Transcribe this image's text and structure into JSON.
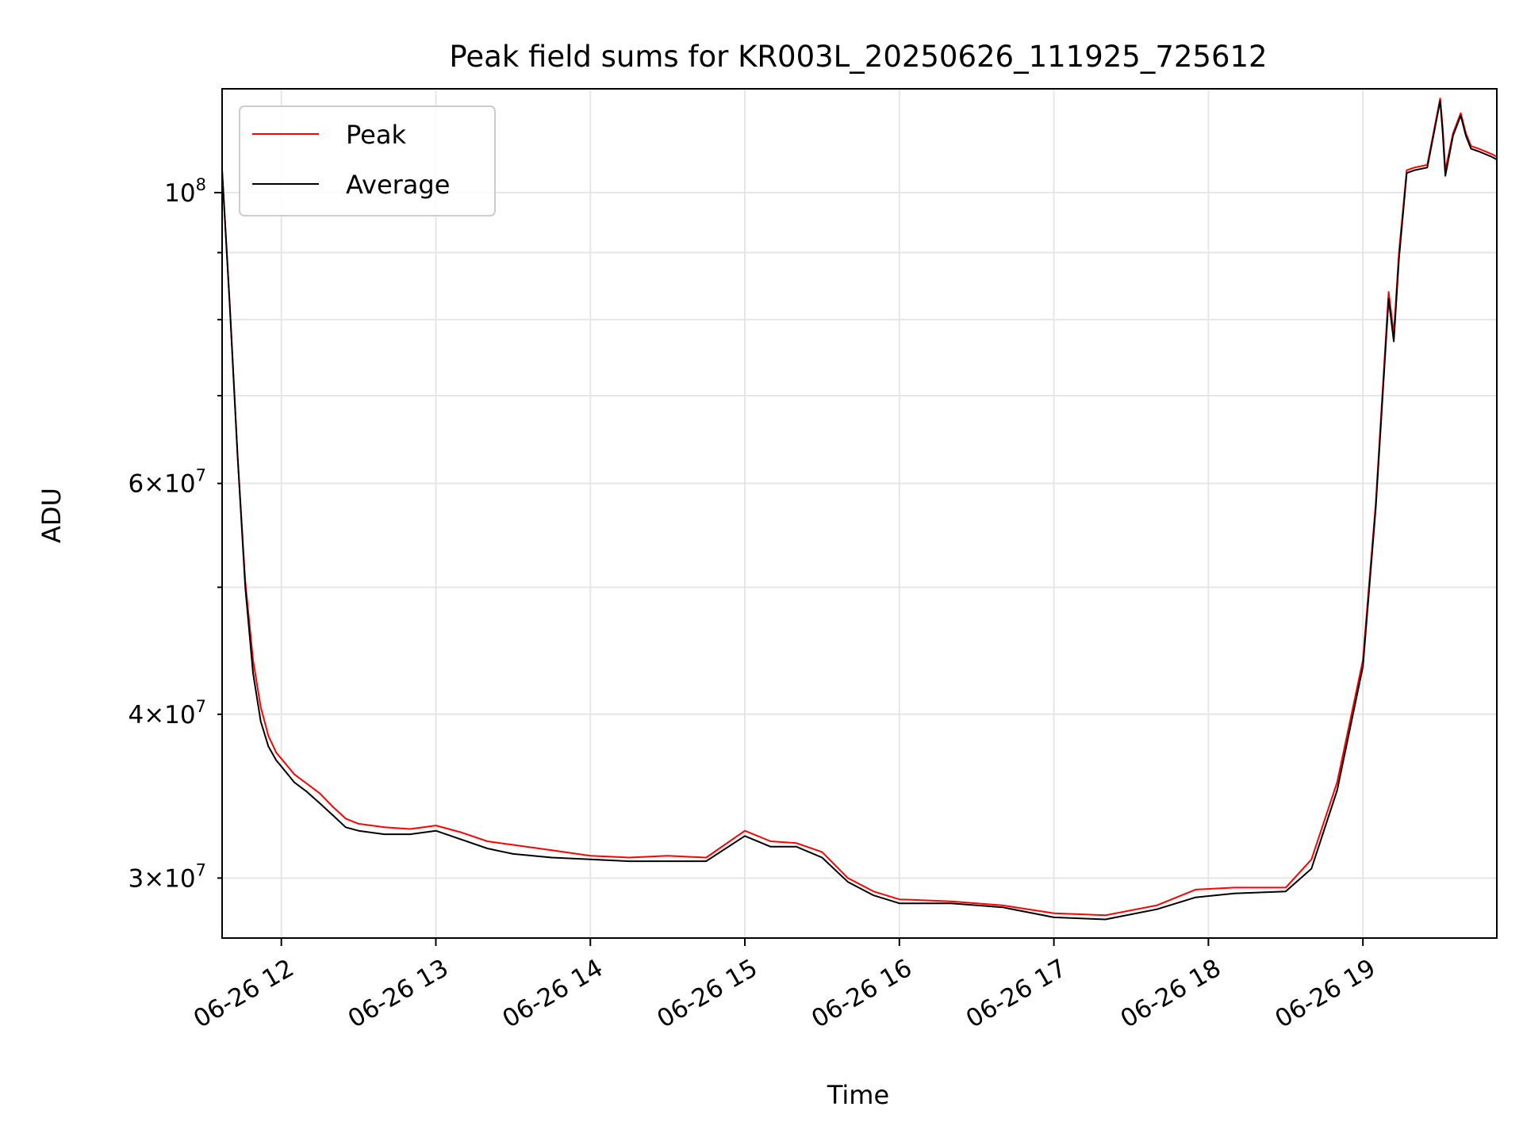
{
  "chart_data": {
    "type": "line",
    "title": "Peak field sums for KR003L_20250626_111925_725612",
    "xlabel": "Time",
    "ylabel": "ADU",
    "y_scale": "log",
    "ylim": [
      27000000,
      120000000
    ],
    "grid": true,
    "legend_position": "top-left",
    "x_tick_labels": [
      "06-26 12",
      "06-26 13",
      "06-26 14",
      "06-26 15",
      "06-26 16",
      "06-26 17",
      "06-26 18",
      "06-26 19"
    ],
    "x_tick_values": [
      "2025-06-26T12:00",
      "2025-06-26T13:00",
      "2025-06-26T14:00",
      "2025-06-26T15:00",
      "2025-06-26T16:00",
      "2025-06-26T17:00",
      "2025-06-26T18:00",
      "2025-06-26T19:00"
    ],
    "xlim": [
      "2025-06-26T11:37",
      "2025-06-26T19:52"
    ],
    "y_major_ticks": [
      {
        "value": 100000000,
        "base": "10",
        "exp": "8"
      }
    ],
    "y_minor_ticks": [
      {
        "value": 30000000,
        "mant": "3",
        "base": "10",
        "exp": "7"
      },
      {
        "value": 40000000,
        "mant": "4",
        "base": "10",
        "exp": "7"
      },
      {
        "value": 60000000,
        "mant": "6",
        "base": "10",
        "exp": "7"
      }
    ],
    "y_unlabeled_minor_ticks": [
      50000000,
      70000000,
      80000000,
      90000000
    ],
    "series": [
      {
        "name": "Peak",
        "color": "#ff0000",
        "x": [
          "2025-06-26T11:37",
          "2025-06-26T11:40",
          "2025-06-26T11:43",
          "2025-06-26T11:46",
          "2025-06-26T11:49",
          "2025-06-26T11:52",
          "2025-06-26T11:55",
          "2025-06-26T11:58",
          "2025-06-26T12:01",
          "2025-06-26T12:05",
          "2025-06-26T12:10",
          "2025-06-26T12:15",
          "2025-06-26T12:20",
          "2025-06-26T12:25",
          "2025-06-26T12:30",
          "2025-06-26T12:40",
          "2025-06-26T12:50",
          "2025-06-26T13:00",
          "2025-06-26T13:10",
          "2025-06-26T13:20",
          "2025-06-26T13:30",
          "2025-06-26T13:45",
          "2025-06-26T14:00",
          "2025-06-26T14:15",
          "2025-06-26T14:30",
          "2025-06-26T14:45",
          "2025-06-26T15:00",
          "2025-06-26T15:10",
          "2025-06-26T15:20",
          "2025-06-26T15:30",
          "2025-06-26T15:40",
          "2025-06-26T15:50",
          "2025-06-26T16:00",
          "2025-06-26T16:20",
          "2025-06-26T16:40",
          "2025-06-26T17:00",
          "2025-06-26T17:20",
          "2025-06-26T17:40",
          "2025-06-26T17:55",
          "2025-06-26T18:10",
          "2025-06-26T18:30",
          "2025-06-26T18:40",
          "2025-06-26T18:50",
          "2025-06-26T19:00",
          "2025-06-26T19:05",
          "2025-06-26T19:10",
          "2025-06-26T19:12",
          "2025-06-26T19:14",
          "2025-06-26T19:17",
          "2025-06-26T19:20",
          "2025-06-26T19:25",
          "2025-06-26T19:30",
          "2025-06-26T19:31",
          "2025-06-26T19:32",
          "2025-06-26T19:35",
          "2025-06-26T19:38",
          "2025-06-26T19:40",
          "2025-06-26T19:42",
          "2025-06-26T19:45",
          "2025-06-26T19:50",
          "2025-06-26T19:52"
        ],
        "y": [
          104000000,
          82000000,
          63000000,
          50500000,
          44000000,
          40500000,
          38500000,
          37400000,
          36800000,
          36000000,
          35400000,
          34800000,
          34000000,
          33300000,
          33000000,
          32800000,
          32700000,
          32900000,
          32500000,
          32000000,
          31800000,
          31500000,
          31200000,
          31100000,
          31200000,
          31100000,
          32600000,
          32000000,
          31900000,
          31400000,
          30000000,
          29300000,
          28900000,
          28800000,
          28600000,
          28200000,
          28100000,
          28600000,
          29400000,
          29500000,
          29500000,
          31000000,
          35500000,
          44000000,
          58000000,
          84000000,
          78000000,
          90000000,
          104000000,
          104500000,
          105000000,
          118000000,
          112000000,
          104000000,
          111000000,
          115000000,
          111000000,
          108500000,
          108000000,
          107000000,
          106500000
        ]
      },
      {
        "name": "Average",
        "color": "#000000",
        "x": [
          "2025-06-26T11:37",
          "2025-06-26T11:40",
          "2025-06-26T11:43",
          "2025-06-26T11:46",
          "2025-06-26T11:49",
          "2025-06-26T11:52",
          "2025-06-26T11:55",
          "2025-06-26T11:58",
          "2025-06-26T12:01",
          "2025-06-26T12:05",
          "2025-06-26T12:10",
          "2025-06-26T12:15",
          "2025-06-26T12:20",
          "2025-06-26T12:25",
          "2025-06-26T12:30",
          "2025-06-26T12:40",
          "2025-06-26T12:50",
          "2025-06-26T13:00",
          "2025-06-26T13:10",
          "2025-06-26T13:20",
          "2025-06-26T13:30",
          "2025-06-26T13:45",
          "2025-06-26T14:00",
          "2025-06-26T14:15",
          "2025-06-26T14:30",
          "2025-06-26T14:45",
          "2025-06-26T15:00",
          "2025-06-26T15:10",
          "2025-06-26T15:20",
          "2025-06-26T15:30",
          "2025-06-26T15:40",
          "2025-06-26T15:50",
          "2025-06-26T16:00",
          "2025-06-26T16:20",
          "2025-06-26T16:40",
          "2025-06-26T17:00",
          "2025-06-26T17:20",
          "2025-06-26T17:40",
          "2025-06-26T17:55",
          "2025-06-26T18:10",
          "2025-06-26T18:30",
          "2025-06-26T18:40",
          "2025-06-26T18:50",
          "2025-06-26T19:00",
          "2025-06-26T19:05",
          "2025-06-26T19:10",
          "2025-06-26T19:12",
          "2025-06-26T19:14",
          "2025-06-26T19:17",
          "2025-06-26T19:20",
          "2025-06-26T19:25",
          "2025-06-26T19:30",
          "2025-06-26T19:31",
          "2025-06-26T19:32",
          "2025-06-26T19:35",
          "2025-06-26T19:38",
          "2025-06-26T19:40",
          "2025-06-26T19:42",
          "2025-06-26T19:45",
          "2025-06-26T19:50",
          "2025-06-26T19:52"
        ],
        "y": [
          104000000,
          82000000,
          63000000,
          50000000,
          43000000,
          39500000,
          37800000,
          36900000,
          36300000,
          35500000,
          34900000,
          34200000,
          33500000,
          32800000,
          32600000,
          32400000,
          32400000,
          32600000,
          32100000,
          31600000,
          31300000,
          31100000,
          31000000,
          30900000,
          30900000,
          30900000,
          32300000,
          31700000,
          31700000,
          31100000,
          29800000,
          29100000,
          28700000,
          28700000,
          28500000,
          28000000,
          27900000,
          28400000,
          29000000,
          29200000,
          29300000,
          30500000,
          35000000,
          43500000,
          57500000,
          83000000,
          77000000,
          89000000,
          103500000,
          104000000,
          104500000,
          117500000,
          111000000,
          103000000,
          110500000,
          114500000,
          110500000,
          108000000,
          107500000,
          106500000,
          106000000
        ]
      }
    ]
  }
}
